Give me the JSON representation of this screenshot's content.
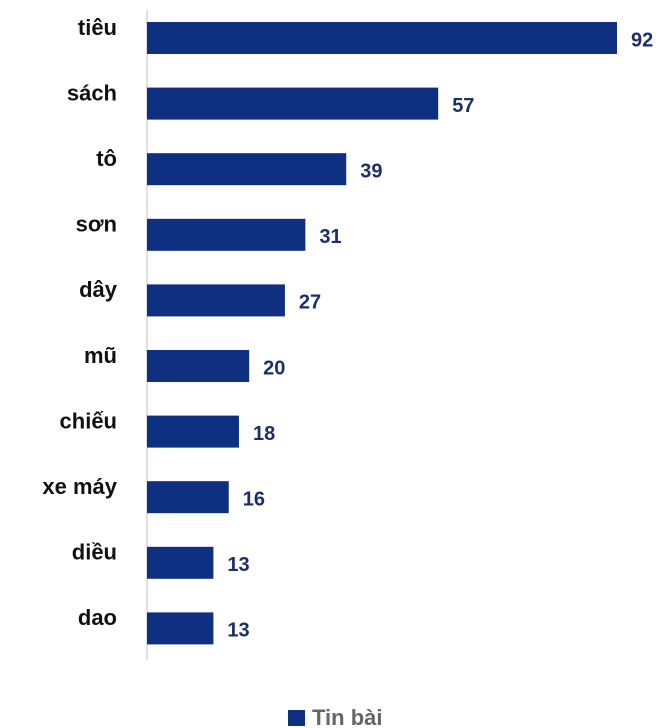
{
  "chart_data": {
    "type": "bar",
    "orientation": "horizontal",
    "categories": [
      "tiêu",
      "sách",
      "tô",
      "sơn",
      "dây",
      "mũ",
      "chiếu",
      "xe máy",
      "diều",
      "dao"
    ],
    "series": [
      {
        "name": "Tin bài",
        "color": "#0f2f80",
        "values": [
          92,
          57,
          39,
          31,
          27,
          20,
          18,
          16,
          13,
          13
        ]
      }
    ],
    "legend": "bottom"
  }
}
